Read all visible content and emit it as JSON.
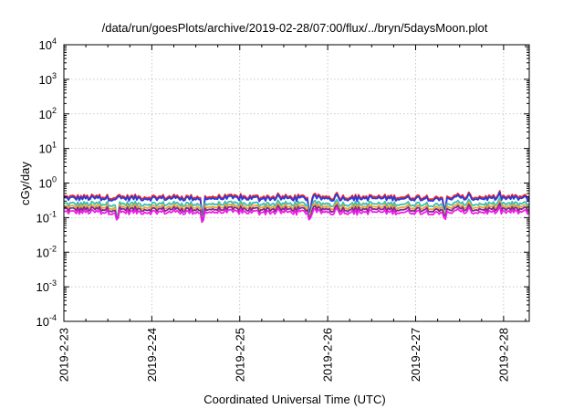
{
  "chart_data": {
    "type": "line",
    "title": "/data/run/goesPlots/archive/2019-02-28/07:00/flux/../bryn/5daysMoon.plot",
    "xlabel": "Coordinated Universal Time (UTC)",
    "ylabel": "cGy/day",
    "yscale": "log",
    "ylim": [
      0.0001,
      10000
    ],
    "y_ticks": [
      {
        "base": "10",
        "exp": "-4",
        "value": 0.0001
      },
      {
        "base": "10",
        "exp": "-3",
        "value": 0.001
      },
      {
        "base": "10",
        "exp": "-2",
        "value": 0.01
      },
      {
        "base": "10",
        "exp": "-1",
        "value": 0.1
      },
      {
        "base": "10",
        "exp": "0",
        "value": 1
      },
      {
        "base": "10",
        "exp": "1",
        "value": 10
      },
      {
        "base": "10",
        "exp": "2",
        "value": 100
      },
      {
        "base": "10",
        "exp": "3",
        "value": 1000
      },
      {
        "base": "10",
        "exp": "4",
        "value": 10000
      }
    ],
    "xlim": [
      "2019-02-23",
      "2019-02-28 07:00"
    ],
    "x_ticks": [
      "2019-2-23",
      "2019-2-24",
      "2019-2-25",
      "2019-2-26",
      "2019-2-27",
      "2019-2-28"
    ],
    "grid": true,
    "series": [
      {
        "color": "#e8262b",
        "base": 0.4,
        "dips": [
          {
            "date": "2019-02-24 14:00",
            "depth": 0.35
          },
          {
            "date": "2019-02-25 19:00",
            "depth": 0.4
          },
          {
            "date": "2019-02-27 08:00",
            "depth": 0.45
          }
        ]
      },
      {
        "color": "#2b3bdc",
        "base": 0.36,
        "dips": [
          {
            "date": "2019-02-24 14:00",
            "depth": 0.35
          },
          {
            "date": "2019-02-25 19:00",
            "depth": 0.4
          },
          {
            "date": "2019-02-27 08:00",
            "depth": 0.45
          }
        ]
      },
      {
        "color": "#3bbfae",
        "base": 0.25,
        "dips": [
          {
            "date": "2019-02-23 14:30",
            "depth": 0.45
          },
          {
            "date": "2019-02-24 14:00",
            "depth": 0.4
          },
          {
            "date": "2019-02-25 19:00",
            "depth": 0.45
          },
          {
            "date": "2019-02-27 08:00",
            "depth": 0.5
          }
        ]
      },
      {
        "color": "#e9a33a",
        "base": 0.205,
        "dips": [
          {
            "date": "2019-02-23 14:30",
            "depth": 0.5
          },
          {
            "date": "2019-02-24 14:00",
            "depth": 0.45
          },
          {
            "date": "2019-02-25 19:00",
            "depth": 0.5
          },
          {
            "date": "2019-02-27 08:00",
            "depth": 0.55
          }
        ]
      },
      {
        "color": "#7a2a8a",
        "base": 0.175,
        "dips": [
          {
            "date": "2019-02-23 14:30",
            "depth": 0.55
          },
          {
            "date": "2019-02-24 14:00",
            "depth": 0.5
          },
          {
            "date": "2019-02-25 19:00",
            "depth": 0.55
          },
          {
            "date": "2019-02-27 08:00",
            "depth": 0.6
          }
        ]
      },
      {
        "color": "#f01ee8",
        "base": 0.145,
        "dips": [
          {
            "date": "2019-02-23 14:30",
            "depth": 0.6
          },
          {
            "date": "2019-02-24 14:00",
            "depth": 0.55
          },
          {
            "date": "2019-02-25 19:00",
            "depth": 0.6
          },
          {
            "date": "2019-02-27 08:00",
            "depth": 0.6
          }
        ]
      }
    ]
  }
}
